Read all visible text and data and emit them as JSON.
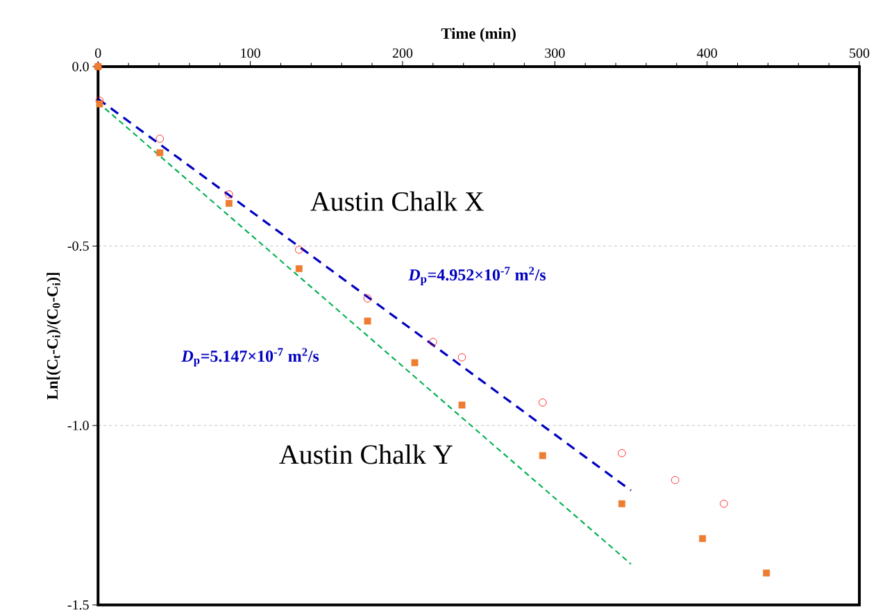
{
  "chart_data": {
    "type": "scatter",
    "xlabel": "Time (min)",
    "ylabel": "Ln[(C$_{t}$-C$_{i}$)/(C$_{0}$-C$_{i}$)]",
    "xlim": [
      0,
      500
    ],
    "xticks": [
      0,
      100,
      200,
      300,
      400,
      500
    ],
    "ylim": [
      -1.5,
      0
    ],
    "yticks": [
      {
        "value": 0,
        "label": "0.0"
      },
      {
        "value": -0.5,
        "label": "-0.5"
      },
      {
        "value": -1.0,
        "label": "-1.0"
      },
      {
        "value": -1.5,
        "label": "-1.5"
      }
    ],
    "grid": "y",
    "series": [
      {
        "marker": "circle",
        "color": "#ff0000",
        "x": [
          0,
          1,
          40.6,
          86,
          132,
          177,
          220,
          239,
          292,
          344,
          379,
          411
        ],
        "values": [
          0,
          -0.095,
          -0.201,
          -0.356,
          -0.51,
          -0.646,
          -0.767,
          -0.81,
          -0.936,
          -1.077,
          -1.152,
          -1.218
        ]
      },
      {
        "marker": "square",
        "color": "#ed7d31",
        "x": [
          0,
          1,
          40.6,
          86,
          132,
          177,
          208,
          239,
          292,
          344,
          397,
          439
        ],
        "values": [
          0,
          -0.104,
          -0.24,
          -0.381,
          -0.563,
          -0.709,
          -0.825,
          -0.943,
          -1.084,
          -1.218,
          -1.315,
          -1.411
        ]
      },
      {
        "type": "line",
        "line_style": "dashed",
        "marker": "none",
        "color": "#0000c0",
        "x": [
          0,
          350
        ],
        "values": [
          -0.09,
          -1.181
        ]
      },
      {
        "type": "line",
        "line_style": "dashed",
        "marker": "none",
        "color": "#00b050",
        "x": [
          0,
          350
        ],
        "values": [
          -0.1,
          -1.386
        ]
      }
    ],
    "annotations": [
      "Austin Chalk X",
      "*D*$_{p}$=4.952×10$^{-7}$ m$^{2}$/s",
      "*D*$_{p}$=5.147×10$^{-7}$ m$^{2}$/s",
      "Austin Chalk Y"
    ]
  }
}
